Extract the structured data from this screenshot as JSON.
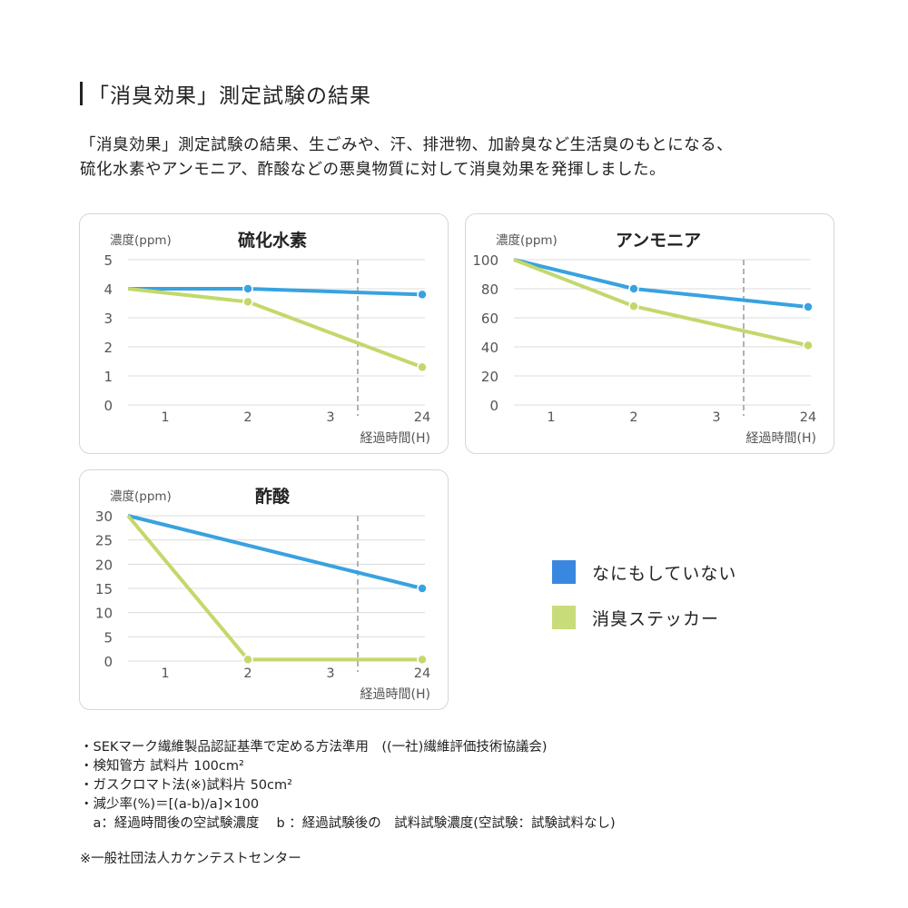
{
  "heading": "「消臭効果」測定試験の結果",
  "intro": [
    "「消臭効果」測定試験の結果、生ごみや、汗、排泄物、加齢臭など生活臭のもとになる、",
    "硫化水素やアンモニア、酢酸などの悪臭物質に対して消臭効果を発揮しました。"
  ],
  "legend": [
    {
      "label": "なにもしていない",
      "color": "#3a87e0"
    },
    {
      "label": "消臭ステッカー",
      "color": "#c9dc7a"
    }
  ],
  "line_colors": [
    "#39a2e0",
    "#c3d86c"
  ],
  "chart_data": [
    {
      "type": "line",
      "title": "硫化水素",
      "ylabel": "濃度(ppm)",
      "xlabel": "経過時間(H)",
      "x_ticks": [
        "1",
        "2",
        "3",
        "24"
      ],
      "y_ticks": [
        "0",
        "1",
        "2",
        "3",
        "4",
        "5"
      ],
      "ylim": [
        0,
        5
      ],
      "grid": true,
      "series": [
        {
          "name": "なにもしていない",
          "x": [
            0,
            2,
            24
          ],
          "values": [
            4,
            4,
            3.8
          ],
          "markers": [
            false,
            true,
            true
          ]
        },
        {
          "name": "消臭ステッカー",
          "x": [
            0,
            2,
            24
          ],
          "values": [
            4,
            3.55,
            1.3
          ],
          "markers": [
            false,
            true,
            true
          ]
        }
      ]
    },
    {
      "type": "line",
      "title": "アンモニア",
      "ylabel": "濃度(ppm)",
      "xlabel": "経過時間(H)",
      "x_ticks": [
        "1",
        "2",
        "3",
        "24"
      ],
      "y_ticks": [
        "0",
        "20",
        "40",
        "60",
        "80",
        "100"
      ],
      "ylim": [
        0,
        100
      ],
      "grid": true,
      "series": [
        {
          "name": "なにもしていない",
          "x": [
            0,
            2,
            24
          ],
          "values": [
            100,
            80,
            67.5
          ],
          "markers": [
            false,
            true,
            true
          ]
        },
        {
          "name": "消臭ステッカー",
          "x": [
            0,
            2,
            24
          ],
          "values": [
            100,
            68,
            41
          ],
          "markers": [
            false,
            true,
            true
          ]
        }
      ]
    },
    {
      "type": "line",
      "title": "酢酸",
      "ylabel": "濃度(ppm)",
      "xlabel": "経過時間(H)",
      "x_ticks": [
        "1",
        "2",
        "3",
        "24"
      ],
      "y_ticks": [
        "0",
        "5",
        "10",
        "15",
        "20",
        "25",
        "30"
      ],
      "ylim": [
        0,
        30
      ],
      "grid": true,
      "series": [
        {
          "name": "なにもしていない",
          "x": [
            0,
            24
          ],
          "values": [
            30,
            15
          ],
          "markers": [
            false,
            true
          ]
        },
        {
          "name": "消臭ステッカー",
          "x": [
            0,
            2,
            24
          ],
          "values": [
            30,
            0.3,
            0.3
          ],
          "markers": [
            false,
            true,
            true
          ]
        }
      ]
    }
  ],
  "notes": [
    "・SEKマーク繊維製品認証基準で定める方法準用　((一社)繊維評価技術協議会)",
    "・検知管方 試料片 100cm²",
    "・ガスクロマト法(※)試料片 50cm²",
    "・減少率(%)＝[(a-b)/a]×100",
    "　a：経過時間後の空試験濃度　 b ：経過試験後の　試料試験濃度(空試験：試験試料なし)"
  ],
  "source": "※一般社団法人カケンテストセンター"
}
